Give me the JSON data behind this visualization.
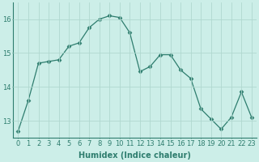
{
  "x": [
    0,
    1,
    2,
    3,
    4,
    5,
    6,
    7,
    8,
    9,
    10,
    11,
    12,
    13,
    14,
    15,
    16,
    17,
    18,
    19,
    20,
    21,
    22,
    23
  ],
  "y": [
    12.7,
    13.6,
    14.7,
    14.75,
    14.8,
    15.2,
    15.3,
    15.75,
    16.0,
    16.1,
    16.05,
    15.6,
    14.45,
    14.6,
    14.95,
    14.95,
    14.5,
    14.25,
    13.35,
    13.05,
    12.75,
    13.1,
    13.85,
    13.1
  ],
  "line_color": "#2e7d6e",
  "marker": "D",
  "marker_size": 2.5,
  "bg_color": "#cceee8",
  "grid_color": "#b0d8d0",
  "xlabel": "Humidex (Indice chaleur)",
  "ylim": [
    12.5,
    16.5
  ],
  "xlim": [
    -0.5,
    23.5
  ],
  "yticks": [
    13,
    14,
    15,
    16
  ],
  "xticks": [
    0,
    1,
    2,
    3,
    4,
    5,
    6,
    7,
    8,
    9,
    10,
    11,
    12,
    13,
    14,
    15,
    16,
    17,
    18,
    19,
    20,
    21,
    22,
    23
  ],
  "label_fontsize": 7,
  "tick_fontsize": 6
}
